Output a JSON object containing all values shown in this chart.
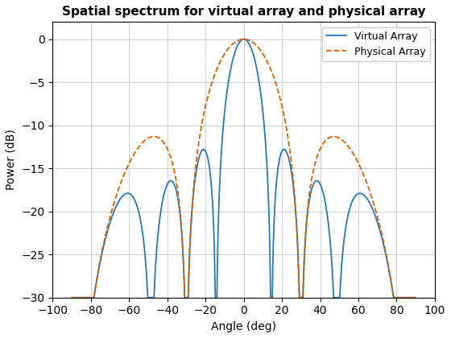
{
  "title": "Spatial spectrum for virtual array and physical array",
  "xlabel": "Angle (deg)",
  "ylabel": "Power (dB)",
  "xlim": [
    -100,
    100
  ],
  "ylim": [
    -30,
    2
  ],
  "yticks": [
    0,
    -5,
    -10,
    -15,
    -20,
    -25,
    -30
  ],
  "xticks": [
    -100,
    -80,
    -60,
    -40,
    -20,
    0,
    20,
    40,
    60,
    80,
    100
  ],
  "virtual_color": "#2878b5",
  "physical_color": "#d95f02",
  "grid_color": "#d0d0d0",
  "background_color": "#ffffff",
  "virtual_linewidth": 1.3,
  "physical_linewidth": 1.3,
  "title_fontsize": 11,
  "label_fontsize": 10,
  "virtual_label": "Virtual Array",
  "physical_label": "Physical Array"
}
